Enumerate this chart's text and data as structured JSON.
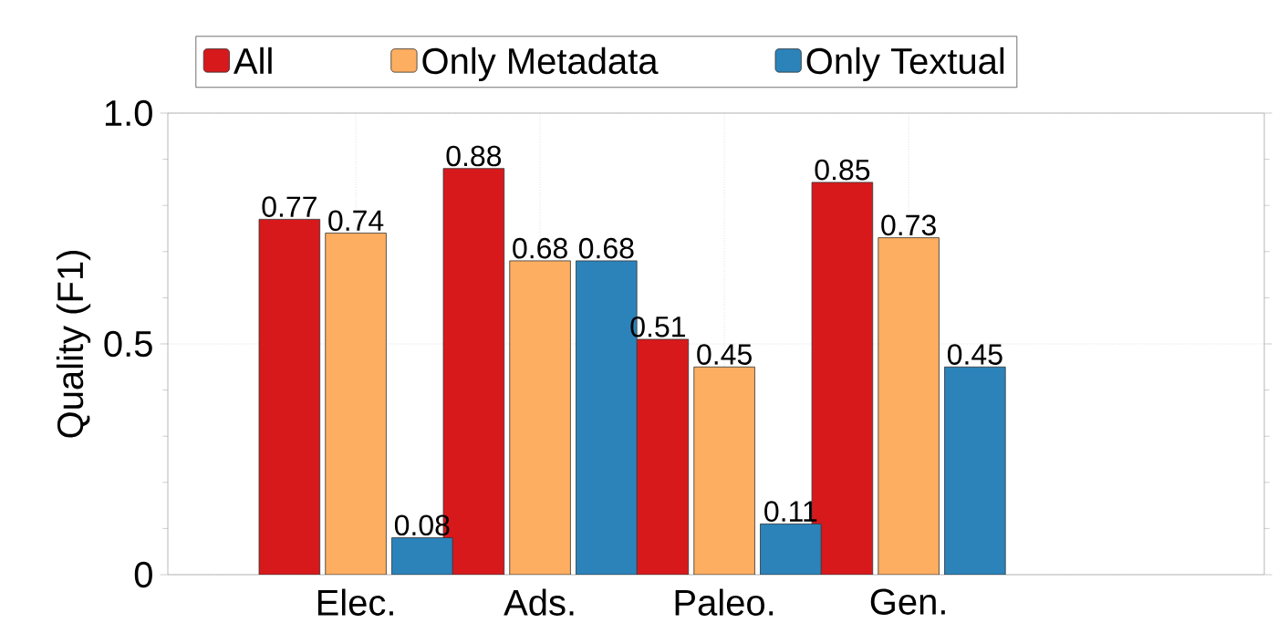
{
  "chart_data": {
    "type": "bar",
    "ylabel": "Quality (F1)",
    "categories": [
      "Elec.",
      "Ads.",
      "Paleo.",
      "Gen."
    ],
    "series": [
      {
        "name": "All",
        "color": "#d7191c",
        "values": [
          0.77,
          0.88,
          0.51,
          0.85
        ]
      },
      {
        "name": "Only Metadata",
        "color": "#fdae61",
        "values": [
          0.74,
          0.68,
          0.45,
          0.73
        ]
      },
      {
        "name": "Only Textual",
        "color": "#2b83ba",
        "values": [
          0.08,
          0.68,
          0.11,
          0.45
        ]
      }
    ],
    "ylim": [
      0,
      1.0
    ],
    "yticks": [
      0,
      0.5,
      {
        "value": 1.0,
        "label": "1.0"
      }
    ],
    "grid": true,
    "legend": "top",
    "data_labels": true
  }
}
